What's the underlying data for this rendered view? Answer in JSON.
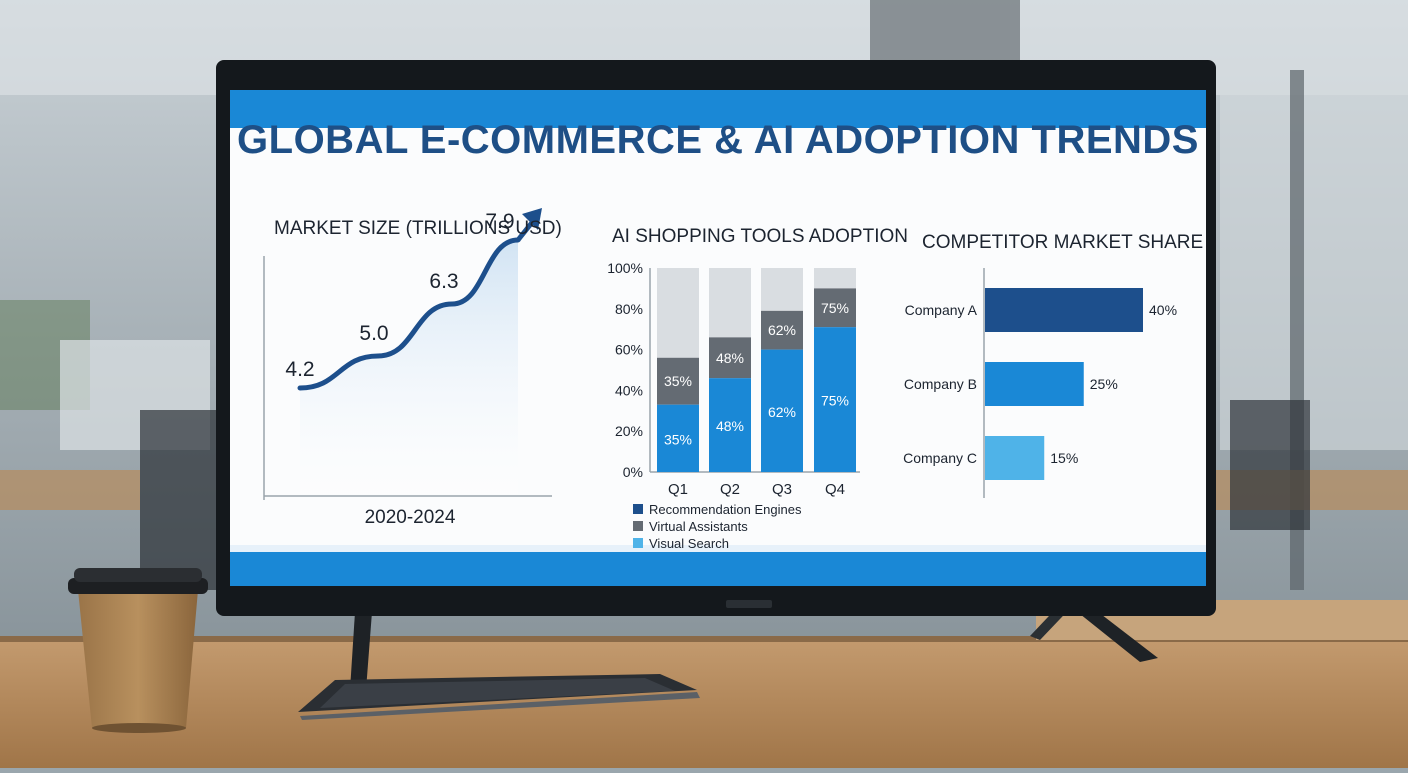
{
  "title": "GLOBAL E-COMMERCE & AI ADOPTION TRENDS",
  "colors": {
    "dark_blue": "#1d4f8c",
    "medium_blue": "#1a88d6",
    "light_blue": "#4fb3e8",
    "gray": "#646b73",
    "light_gray": "#d9dde1"
  },
  "chart_data": [
    {
      "type": "area",
      "title": "MARKET SIZE (TRILLIONS USD)",
      "xlabel": "2020-2024",
      "values": [
        4.2,
        5.0,
        6.3,
        7.9
      ],
      "labels": [
        "4.2",
        "5.0",
        "6.3",
        "7.9"
      ],
      "ylim": [
        0,
        9
      ]
    },
    {
      "type": "bar",
      "stacked": true,
      "title": "AI SHOPPING TOOLS ADOPTION",
      "categories": [
        "Q1",
        "Q2",
        "Q3",
        "Q4"
      ],
      "yticks": [
        "0%",
        "20%",
        "40%",
        "60%",
        "80%",
        "100%"
      ],
      "ylim": [
        0,
        100
      ],
      "series": [
        {
          "name": "Recommendation Engines",
          "values": [
            35,
            48,
            62,
            75
          ],
          "labels": [
            "35%",
            "48%",
            "62%",
            "75%"
          ]
        },
        {
          "name": "Virtual Assistants",
          "values": [
            35,
            48,
            62,
            75
          ],
          "labels": [
            "35%",
            "48%",
            "62%",
            "75%"
          ]
        },
        {
          "name": "Visual Search",
          "values": [
            null,
            null,
            null,
            null
          ]
        }
      ],
      "segment_tops": {
        "primary": [
          33,
          46,
          60,
          71
        ],
        "secondary": [
          56,
          66,
          79,
          90
        ]
      },
      "legend": [
        "Recommendation Engines",
        "Virtual Assistants",
        "Visual Search"
      ]
    },
    {
      "type": "bar",
      "orientation": "horizontal",
      "title": "COMPETITOR MARKET SHARE",
      "categories": [
        "Company A",
        "Company B",
        "Company C"
      ],
      "values": [
        40,
        25,
        15
      ],
      "labels": [
        "40%",
        "25%",
        "15%"
      ],
      "xlim": [
        0,
        40
      ]
    }
  ]
}
